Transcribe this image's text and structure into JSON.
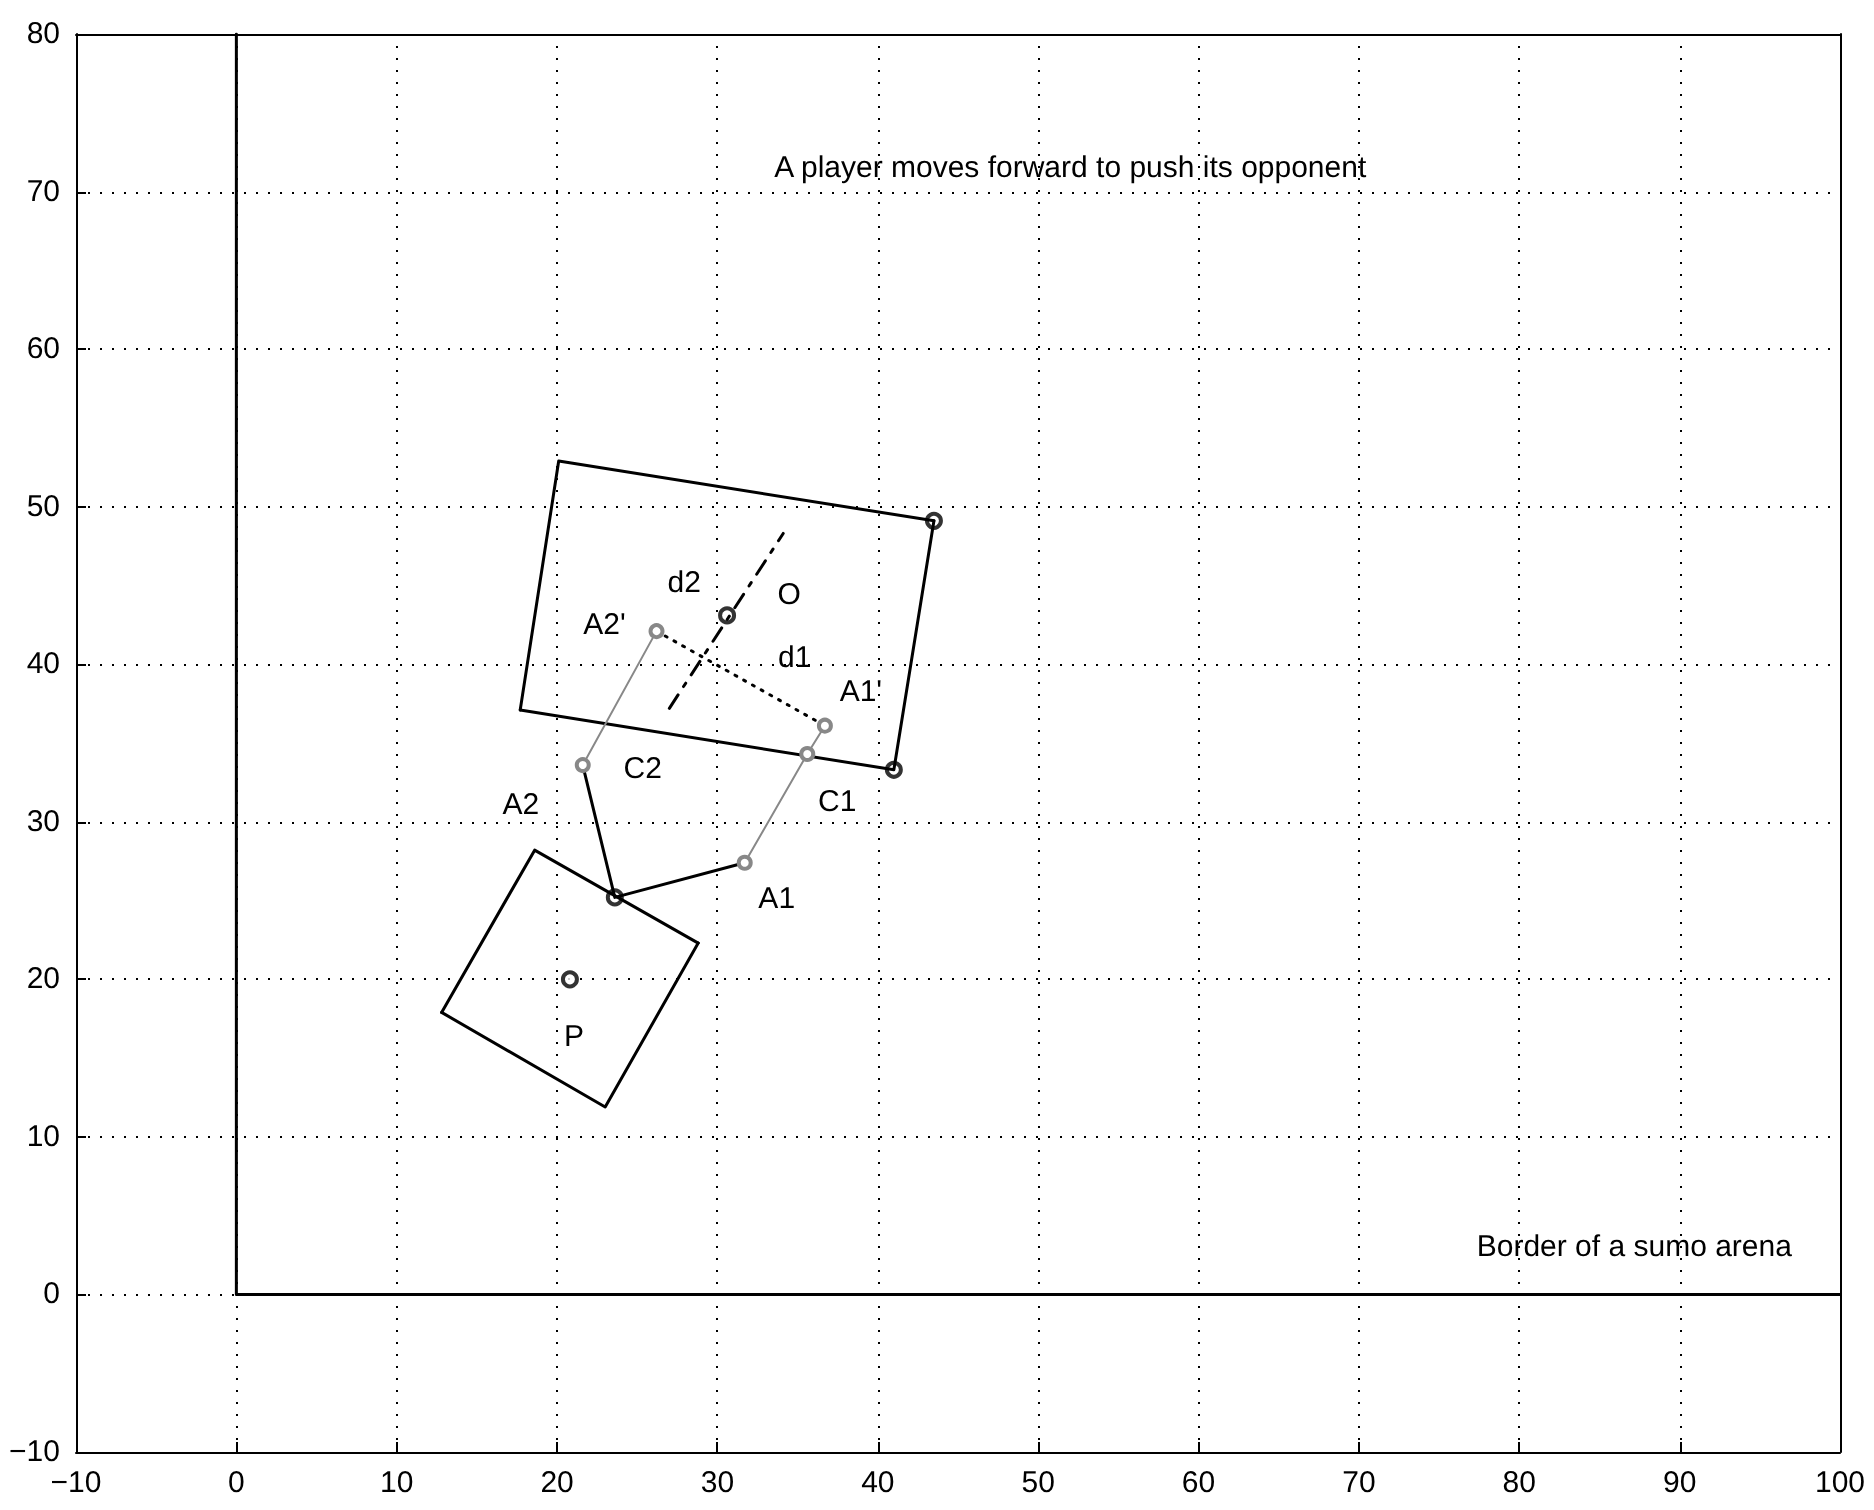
{
  "chart_data": {
    "type": "line",
    "annotations": [
      "A player moves forward to push its opponent",
      "Border of a sumo arena",
      {
        "text": "O",
        "x": 30.6,
        "y": 43.1
      },
      {
        "text": "d2",
        "x": 29.8,
        "y": 41.6
      },
      {
        "text": "A2'",
        "x": 26.2,
        "y": 42.1
      },
      {
        "text": "d1",
        "x": 31.45,
        "y": 39.1
      },
      {
        "text": "A1'",
        "x": 36.7,
        "y": 36.1
      },
      {
        "text": "C2",
        "x": 21.6,
        "y": 33.6
      },
      {
        "text": "C1",
        "x": 35.6,
        "y": 34.3
      },
      {
        "text": "A2",
        "x": 22.6,
        "y": 29.4
      },
      {
        "text": "A1",
        "x": 31.7,
        "y": 27.4
      },
      {
        "text": "P",
        "x": 20.8,
        "y": 20.0
      }
    ],
    "series": [
      {
        "color": "#000000",
        "marker": "none",
        "line_style": "solid",
        "x": [
          0,
          0,
          100
        ],
        "values": [
          80,
          0,
          0
        ]
      },
      {
        "color": "#000000",
        "marker": "none",
        "line_style": "solid",
        "x": [
          17.7,
          20.1,
          43.5
        ],
        "values": [
          37.1,
          52.9,
          49.1
        ]
      },
      {
        "color": "#000000",
        "marker": "none",
        "line_style": "solid",
        "x": [
          17.7,
          41.0,
          43.5
        ],
        "values": [
          37.1,
          33.3,
          49.1
        ]
      },
      {
        "color": "#000000",
        "marker": "none",
        "line_style": "solid",
        "x": [
          12.8,
          18.6,
          28.8
        ],
        "values": [
          17.9,
          28.2,
          22.3
        ]
      },
      {
        "color": "#000000",
        "marker": "none",
        "line_style": "solid",
        "x": [
          12.8,
          23.0,
          28.8
        ],
        "values": [
          17.9,
          11.9,
          22.3
        ]
      },
      {
        "color": "#000000",
        "marker": "none",
        "line_style": "solid",
        "x": [
          21.6,
          23.6,
          31.7
        ],
        "values": [
          33.6,
          25.2,
          27.4
        ]
      },
      {
        "color": "#888888",
        "marker": "circle",
        "line_style": "solid",
        "x": [
          21.6,
          26.2
        ],
        "values": [
          33.6,
          42.1
        ]
      },
      {
        "color": "#888888",
        "marker": "circle",
        "line_style": "solid",
        "x": [
          31.7,
          35.6,
          36.7
        ],
        "values": [
          27.4,
          34.3,
          36.1
        ]
      },
      {
        "color": "#000000",
        "marker": "none",
        "line_style": "dotted",
        "x": [
          26.2,
          36.7
        ],
        "values": [
          42.1,
          36.1
        ]
      },
      {
        "color": "#000000",
        "marker": "none",
        "line_style": "dashed",
        "x": [
          27.0,
          34.1
        ],
        "values": [
          37.2,
          48.3
        ]
      },
      {
        "type": "scatter",
        "color": "#000000",
        "marker": "circle",
        "x": [
          43.5,
          41.0,
          30.6,
          20.8,
          23.6
        ],
        "values": [
          49.1,
          33.3,
          43.1,
          20.0,
          25.2
        ]
      }
    ],
    "xlim": [
      -10,
      100
    ],
    "ylim": [
      -10,
      80
    ],
    "xticks": [
      -10,
      0,
      10,
      20,
      30,
      40,
      50,
      60,
      70,
      80,
      90,
      100
    ],
    "yticks": [
      -10,
      0,
      10,
      20,
      30,
      40,
      50,
      60,
      70,
      80
    ],
    "grid": true
  }
}
